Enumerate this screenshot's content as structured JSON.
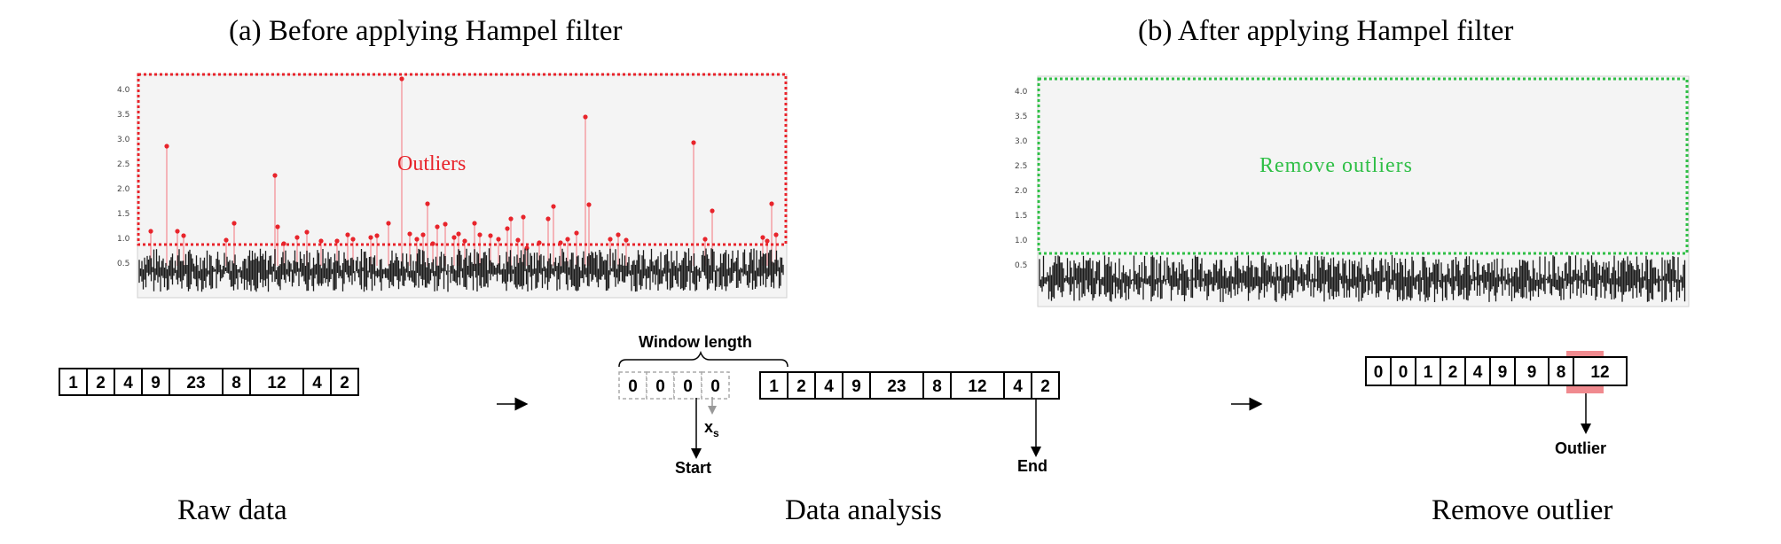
{
  "panels": {
    "a": {
      "title": "(a) Before applying Hampel filter",
      "annotation": "Outliers",
      "y_ticks": [
        "4.0",
        "3.5",
        "3.0",
        "2.5",
        "2.0",
        "1.5",
        "1.0",
        "0.5"
      ]
    },
    "b": {
      "title": "(b) After applying Hampel filter",
      "annotation": "Remove outliers",
      "y_ticks": [
        "4.0",
        "3.5",
        "3.0",
        "2.5",
        "2.0",
        "1.5",
        "1.0",
        "0.5"
      ]
    }
  },
  "raw": {
    "cells": [
      "1",
      "2",
      "4",
      "9",
      "23",
      "8",
      "12",
      "4",
      "2"
    ],
    "caption": "Raw data"
  },
  "analysis": {
    "window_label": "Window length",
    "pad_cells": [
      "0",
      "0",
      "0",
      "0"
    ],
    "cells": [
      "1",
      "2",
      "4",
      "9",
      "23",
      "8",
      "12",
      "4",
      "2"
    ],
    "xs_label": "x",
    "xs_sub": "s",
    "start_label": "Start",
    "end_label": "End",
    "caption": "Data analysis"
  },
  "result": {
    "cells": [
      "0",
      "0",
      "1",
      "2",
      "4",
      "9",
      "9",
      "8",
      "12"
    ],
    "highlight_index": 6,
    "outlier_label": "Outlier",
    "caption": "Remove outlier"
  },
  "colors": {
    "outlier_red": "#e8242b",
    "outlier_spike": "#f4b4b8",
    "highlight": "#f08a8f",
    "green": "#2fbf46",
    "signal": "#1a1a1a"
  }
}
